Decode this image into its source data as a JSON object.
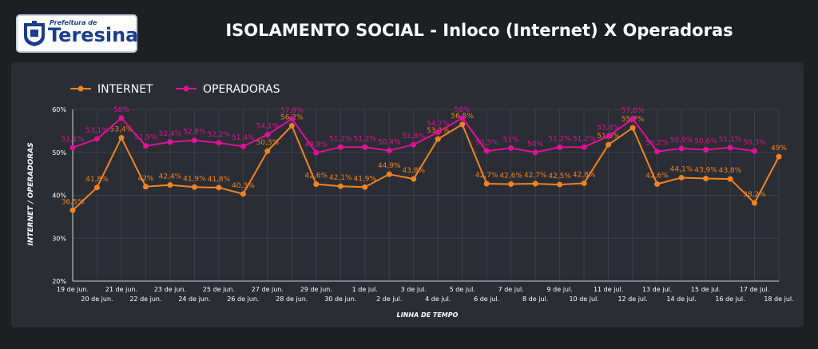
{
  "logo": {
    "small_text": "Prefeitura de",
    "big_text": "Teresina"
  },
  "header": {
    "title": "ISOLAMENTO SOCIAL - Inloco (Internet) X Operadoras"
  },
  "colors": {
    "internet": "#f28322",
    "operadoras": "#e0119a",
    "background": "#1d1f23",
    "panel": "#2a2d34",
    "grid": "#3d4048"
  },
  "chart_data": {
    "type": "line",
    "title": "ISOLAMENTO SOCIAL - Inloco (Internet) X Operadoras",
    "xlabel": "LINHA DE TEMPO",
    "ylabel": "INTERNET / OPERADORAS",
    "ylim": [
      20,
      60
    ],
    "yticks": [
      "20%",
      "30%",
      "40%",
      "50%",
      "60%"
    ],
    "grid": true,
    "legend_position": "top-left",
    "categories": [
      "19 de jun.",
      "20 de jun.",
      "21 de jun.",
      "22 de jun.",
      "23 de jun.",
      "24 de jun.",
      "25 de jun.",
      "26 de jun.",
      "27 de jun.",
      "28 de jun.",
      "29 de jun.",
      "30 de jun.",
      "1 de jul.",
      "2 de jul.",
      "3 de jul.",
      "4 de jul.",
      "5 de jul.",
      "6 de jul.",
      "7 de jul.",
      "8 de jul.",
      "9 de jul.",
      "10 de jul.",
      "11 de jul.",
      "12 de jul.",
      "13 de jul.",
      "14 de jul.",
      "15 de jul.",
      "16 de jul.",
      "17 de jul.",
      "18 de jul."
    ],
    "series": [
      {
        "name": "INTERNET",
        "values": [
          36.5,
          41.8,
          53.4,
          42,
          42.4,
          41.9,
          41.8,
          40.3,
          50.3,
          56.2,
          42.6,
          42.1,
          41.9,
          44.9,
          43.8,
          53.1,
          56.5,
          42.7,
          42.6,
          42.7,
          42.5,
          42.8,
          51.8,
          55.7,
          42.6,
          44.1,
          43.9,
          43.8,
          38.2,
          49
        ],
        "labels": [
          "36,5%",
          "41,8%",
          "53,4%",
          "42%",
          "42,4%",
          "41,9%",
          "41,8%",
          "40,3%",
          "50,3%",
          "56,2%",
          "42,6%",
          "42,1%",
          "41,9%",
          "44,9%",
          "43,8%",
          "53,1%",
          "56,5%",
          "42,7%",
          "42,6%",
          "42,7%",
          "42,5%",
          "42,8%",
          "51,8%",
          "55,7%",
          "42,6%",
          "44,1%",
          "43,9%",
          "43,8%",
          "38,2%",
          "49%"
        ]
      },
      {
        "name": "OPERADORAS",
        "values": [
          51.1,
          53.1,
          58,
          51.5,
          52.4,
          52.8,
          52.2,
          51.4,
          54.1,
          57.8,
          49.9,
          51.2,
          51.2,
          50.4,
          51.8,
          54.7,
          58,
          50.3,
          51,
          50,
          51.2,
          51.2,
          53.8,
          57.8,
          50.2,
          50.9,
          50.6,
          51.1,
          50.3,
          null
        ],
        "labels": [
          "51,1%",
          "53,1%",
          "58%",
          "51,5%",
          "52,4%",
          "52,8%",
          "52,2%",
          "51,4%",
          "54,1%",
          "57,8%",
          "49,9%",
          "51,2%",
          "51,2%",
          "50,4%",
          "51,8%",
          "54,7%",
          "58%",
          "50,3%",
          "51%",
          "50%",
          "51,2%",
          "51,2%",
          "53,8%",
          "57,8%",
          "50,2%",
          "50,9%",
          "50,6%",
          "51,1%",
          "50,3%",
          ""
        ]
      }
    ]
  }
}
